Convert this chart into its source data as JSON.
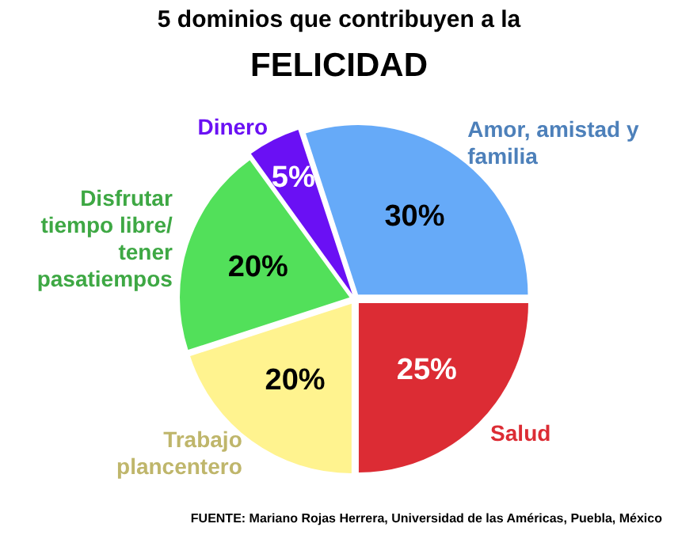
{
  "chart_data": {
    "type": "pie",
    "title": "5 dominios que contribuyen a la",
    "subtitle": "FELICIDAD",
    "categories": [
      "Amor, amistad y familia",
      "Salud",
      "Trabajo plancentero",
      "Disfrutar tiempo libre/ tener pasatiempos",
      "Dinero"
    ],
    "values": [
      30,
      25,
      20,
      20,
      5
    ],
    "value_labels": [
      "30%",
      "25%",
      "20%",
      "20%",
      "5%"
    ],
    "colors": [
      "#66aaf8",
      "#dc2c34",
      "#fff38f",
      "#52e05a",
      "#6a10f4"
    ],
    "annotations": [
      "FUENTE: Mariano Rojas Herrera, Universidad de las Américas, Puebla, México"
    ],
    "legend": false
  }
}
